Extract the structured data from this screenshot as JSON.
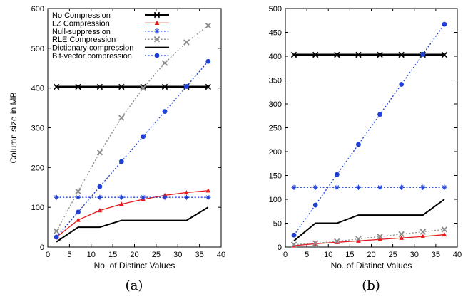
{
  "chart_data": [
    {
      "type": "line",
      "panel_label": "(a)",
      "xlabel": "No. of Distinct Values",
      "ylabel": "Column size in MB",
      "xlim": [
        0,
        40
      ],
      "ylim": [
        0,
        600
      ],
      "xticks": [
        0,
        5,
        10,
        15,
        20,
        25,
        30,
        35,
        40
      ],
      "yticks": [
        0,
        100,
        200,
        300,
        400,
        500,
        600
      ],
      "legend_position": "top-left",
      "x": [
        2,
        7,
        12,
        17,
        22,
        27,
        32,
        37
      ],
      "series": [
        {
          "name": "No Compression",
          "color": "#000000",
          "marker": "x",
          "dash": "solid",
          "width": 3,
          "values": [
            403,
            403,
            403,
            403,
            403,
            403,
            403,
            403
          ]
        },
        {
          "name": "LZ Compression",
          "color": "#e41a1c",
          "marker": "triangle",
          "dash": "solid",
          "width": 1.3,
          "values": [
            25,
            68,
            92,
            108,
            120,
            130,
            137,
            142
          ]
        },
        {
          "name": "Null-suppression",
          "color": "#1f3fd6",
          "marker": "asterisk",
          "dash": "dotted",
          "width": 1.3,
          "values": [
            125,
            125,
            125,
            125,
            125,
            125,
            125,
            125
          ]
        },
        {
          "name": "RLE Compression",
          "color": "#8c8c8c",
          "marker": "x",
          "dash": "dotted",
          "width": 1.3,
          "values": [
            40,
            140,
            238,
            325,
            400,
            463,
            515,
            557
          ]
        },
        {
          "name": "Dictionary compression",
          "color": "#000000",
          "marker": "none",
          "dash": "solid",
          "width": 2,
          "values": [
            13,
            50,
            50,
            67,
            67,
            67,
            67,
            100
          ],
          "step": true
        },
        {
          "name": "Bit-vector compression",
          "color": "#1f3fd6",
          "marker": "circle",
          "dash": "dotted",
          "width": 1.3,
          "values": [
            25,
            88,
            152,
            215,
            278,
            341,
            404,
            467
          ]
        }
      ]
    },
    {
      "type": "line",
      "panel_label": "(b)",
      "xlabel": "No. of Distinct Values",
      "ylabel": "",
      "xlim": [
        0,
        40
      ],
      "ylim": [
        0,
        500
      ],
      "xticks": [
        0,
        5,
        10,
        15,
        20,
        25,
        30,
        35,
        40
      ],
      "yticks": [
        0,
        50,
        100,
        150,
        200,
        250,
        300,
        350,
        400,
        450,
        500
      ],
      "x": [
        2,
        7,
        12,
        17,
        22,
        27,
        32,
        37
      ],
      "series": [
        {
          "name": "No Compression",
          "color": "#000000",
          "marker": "x",
          "dash": "solid",
          "width": 3,
          "values": [
            403,
            403,
            403,
            403,
            403,
            403,
            403,
            403
          ]
        },
        {
          "name": "LZ Compression",
          "color": "#e41a1c",
          "marker": "triangle",
          "dash": "solid",
          "width": 1.3,
          "values": [
            3,
            7,
            10,
            13,
            16,
            19,
            22,
            26
          ]
        },
        {
          "name": "Null-suppression",
          "color": "#1f3fd6",
          "marker": "asterisk",
          "dash": "dotted",
          "width": 1.3,
          "values": [
            125,
            125,
            125,
            125,
            125,
            125,
            125,
            125
          ]
        },
        {
          "name": "RLE Compression",
          "color": "#8c8c8c",
          "marker": "x",
          "dash": "dotted",
          "width": 1.3,
          "values": [
            5,
            8,
            12,
            17,
            22,
            27,
            32,
            37
          ]
        },
        {
          "name": "Dictionary compression",
          "color": "#000000",
          "marker": "none",
          "dash": "solid",
          "width": 2,
          "values": [
            13,
            50,
            50,
            67,
            67,
            67,
            67,
            100
          ],
          "step": true
        },
        {
          "name": "Bit-vector compression",
          "color": "#1f3fd6",
          "marker": "circle",
          "dash": "dotted",
          "width": 1.3,
          "values": [
            25,
            88,
            152,
            215,
            278,
            341,
            404,
            467
          ]
        }
      ]
    }
  ]
}
